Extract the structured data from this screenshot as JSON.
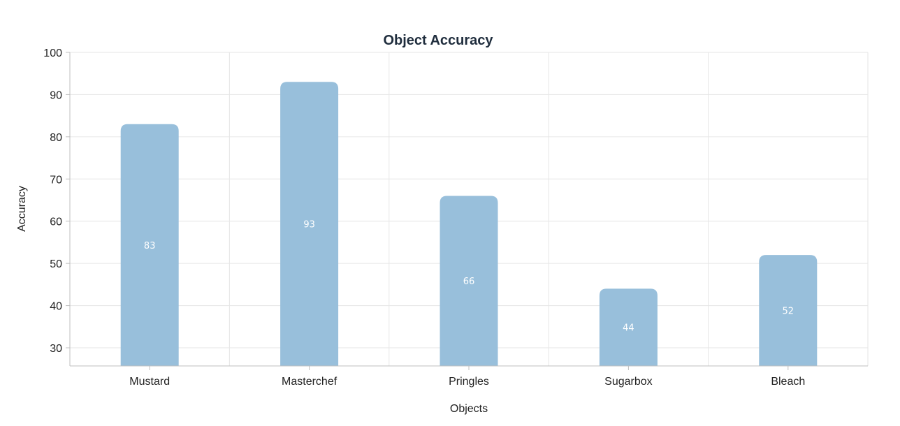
{
  "chart_data": {
    "type": "bar",
    "title": "Object Accuracy",
    "xlabel": "Objects",
    "ylabel": "Accuracy",
    "categories": [
      "Mustard",
      "Masterchef",
      "Pringles",
      "Sugarbox",
      "Bleach"
    ],
    "values": [
      83,
      93,
      66,
      44,
      52
    ],
    "data_labels": [
      "83",
      "93",
      "66",
      "44",
      "52"
    ],
    "yticks": [
      "30",
      "40",
      "50",
      "60",
      "70",
      "80",
      "90",
      "100"
    ],
    "ylim": [
      25.7,
      100
    ],
    "grid": true,
    "bar_color": "#98bfdb"
  }
}
